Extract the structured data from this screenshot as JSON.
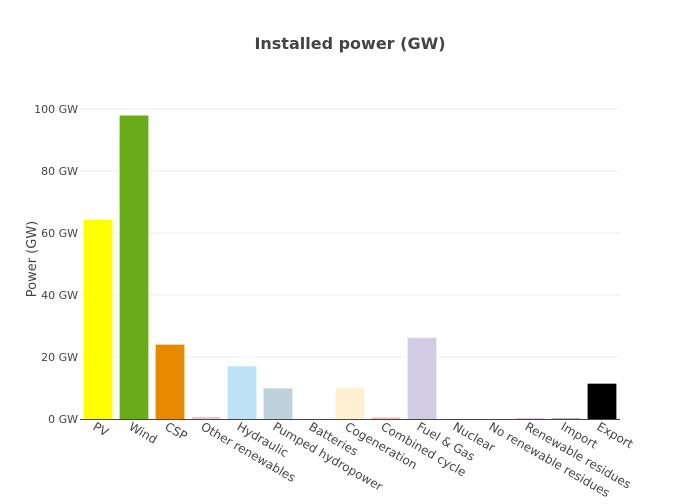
{
  "chart_data": {
    "type": "bar",
    "title": "Installed power (GW)",
    "xlabel": "",
    "ylabel": "Power (GW)",
    "ylim": [
      0,
      100
    ],
    "yticks": [
      0,
      20,
      40,
      60,
      80,
      100
    ],
    "ytick_labels": [
      "0 GW",
      "20 GW",
      "40 GW",
      "60 GW",
      "80 GW",
      "100 GW"
    ],
    "grid": true,
    "legend": "none",
    "categories": [
      "PV",
      "Wind",
      "CSP",
      "Other renewables",
      "Hydraulic",
      "Pumped hydropower",
      "Batteries",
      "Cogeneration",
      "Combined cycle",
      "Fuel & Gas",
      "Nuclear",
      "No renewable residues",
      "Renewable residues",
      "Import",
      "Export"
    ],
    "values": [
      64.2,
      97.9,
      24.0,
      0.7,
      17.0,
      9.9,
      0.1,
      10.0,
      0.5,
      26.2,
      0.0,
      0.0,
      0.3,
      0.2,
      11.4
    ],
    "colors": [
      "#ffff00",
      "#6aab19",
      "#e68a00",
      "#e8c8d8",
      "#bde2f5",
      "#bfd1da",
      "#ffffff",
      "#fff0d2",
      "#f1bcbc",
      "#d2cde4",
      "#d6d6d6",
      "#d6d6d6",
      "#d8c9d8",
      "#8b8b8b",
      "#000000"
    ]
  }
}
